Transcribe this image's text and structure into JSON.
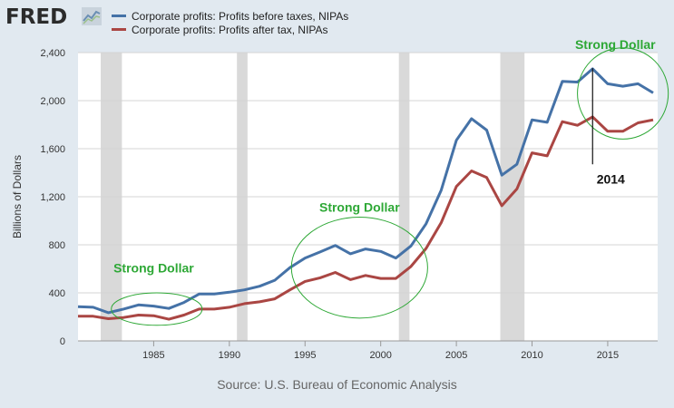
{
  "header": {
    "logo_text": "FRED",
    "logo_icon": "trend-chart-icon"
  },
  "source": "Source: U.S. Bureau of Economic Analysis",
  "colors": {
    "before_tax": "#4572a7",
    "after_tax": "#aa4643",
    "annotation_green": "#2ea836",
    "recession": "#d9d9d9",
    "plot_bg": "#ffffff",
    "grid": "#d4d4d4"
  },
  "chart_data": {
    "type": "line",
    "ylabel": "Billions of Dollars",
    "xlabel": "",
    "ylim": [
      0,
      2400
    ],
    "xlim": [
      1980,
      2018.3
    ],
    "yticks": [
      0,
      400,
      800,
      1200,
      1600,
      2000,
      2400
    ],
    "ytick_labels": [
      "0",
      "400",
      "800",
      "1,200",
      "1,600",
      "2,000",
      "2,400"
    ],
    "xticks": [
      1985,
      1990,
      1995,
      2000,
      2005,
      2010,
      2015
    ],
    "grid": "horizontal",
    "x": [
      1980,
      1981,
      1982,
      1983,
      1984,
      1985,
      1986,
      1987,
      1988,
      1989,
      1990,
      1991,
      1992,
      1993,
      1994,
      1995,
      1996,
      1997,
      1998,
      1999,
      2000,
      2001,
      2002,
      2003,
      2004,
      2005,
      2006,
      2007,
      2008,
      2009,
      2010,
      2011,
      2012,
      2013,
      2014,
      2015,
      2016,
      2017,
      2018
    ],
    "series": [
      {
        "name": "Corporate profits: Profits before taxes, NIPAs",
        "values": [
          285,
          280,
          235,
          265,
          300,
          290,
          270,
          320,
          390,
          390,
          405,
          425,
          455,
          505,
          610,
          690,
          740,
          795,
          725,
          765,
          745,
          690,
          790,
          975,
          1255,
          1670,
          1850,
          1755,
          1380,
          1470,
          1840,
          1820,
          2160,
          2155,
          2265,
          2140,
          2120,
          2140,
          2065
        ]
      },
      {
        "name": "Corporate profits: Profits after tax, NIPAs",
        "values": [
          205,
          205,
          185,
          195,
          215,
          210,
          180,
          215,
          265,
          265,
          280,
          310,
          325,
          350,
          425,
          495,
          525,
          570,
          510,
          545,
          520,
          520,
          620,
          770,
          985,
          1285,
          1415,
          1360,
          1125,
          1265,
          1565,
          1540,
          1825,
          1795,
          1865,
          1745,
          1745,
          1815,
          1840
        ]
      }
    ],
    "recessions": [
      [
        1981.5,
        1982.9
      ],
      [
        1990.5,
        1991.2
      ],
      [
        2001.2,
        2001.9
      ],
      [
        2007.9,
        2009.5
      ]
    ],
    "annotations": [
      {
        "text": "Strong Dollar",
        "x": 1985,
        "y": 570,
        "color": "#2ea836"
      },
      {
        "text": "Strong Dollar",
        "x": 1998.6,
        "y": 1075,
        "color": "#2ea836"
      },
      {
        "text": "Strong Dollar",
        "x": 2015.5,
        "y": 2430,
        "color": "#2ea836"
      },
      {
        "text": "2014",
        "x": 2015.2,
        "y": 1310,
        "color": "#111111"
      }
    ],
    "ellipses": [
      {
        "cx": 1985.2,
        "cy": 265,
        "rx": 3.0,
        "ry": 135
      },
      {
        "cx": 1998.6,
        "cy": 610,
        "rx": 4.5,
        "ry": 420
      },
      {
        "cx": 2016.0,
        "cy": 2060,
        "rx": 3.0,
        "ry": 380
      }
    ],
    "marker_line": {
      "x": 2014,
      "y0": 1470,
      "y1": 2270
    }
  }
}
